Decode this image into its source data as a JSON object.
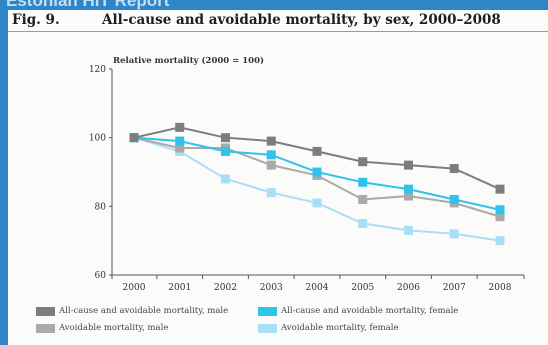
{
  "banner": "Estonian HiT Report",
  "figure": {
    "label": "Fig. 9.",
    "title": "All-cause and avoidable mortality, by sex, 2000–2008"
  },
  "chart_data": {
    "type": "line",
    "ylabel": "Relative mortality (2000 = 100)",
    "xlabel": "",
    "ylim": [
      60,
      120
    ],
    "yticks": [
      60,
      80,
      100,
      120
    ],
    "x": [
      "2000",
      "2001",
      "2002",
      "2003",
      "2004",
      "2005",
      "2006",
      "2007",
      "2008"
    ],
    "grid": false,
    "legend_position": "bottom",
    "series": [
      {
        "name": "All-cause and avoidable mortality, male",
        "color": "#7d7d80",
        "values": [
          100,
          103,
          100,
          99,
          96,
          93,
          92,
          91,
          85
        ]
      },
      {
        "name": "All-cause and avoidable mortality, female",
        "color": "#2fc3ea",
        "values": [
          100,
          99,
          96,
          95,
          90,
          87,
          85,
          82,
          79
        ]
      },
      {
        "name": "Avoidable mortality, male",
        "color": "#aaaaaa",
        "values": [
          100,
          97,
          97,
          92,
          89,
          82,
          83,
          81,
          77
        ]
      },
      {
        "name": "Avoidable mortality, female",
        "color": "#a8dff4",
        "values": [
          100,
          96,
          88,
          84,
          81,
          75,
          73,
          72,
          70
        ]
      }
    ]
  }
}
